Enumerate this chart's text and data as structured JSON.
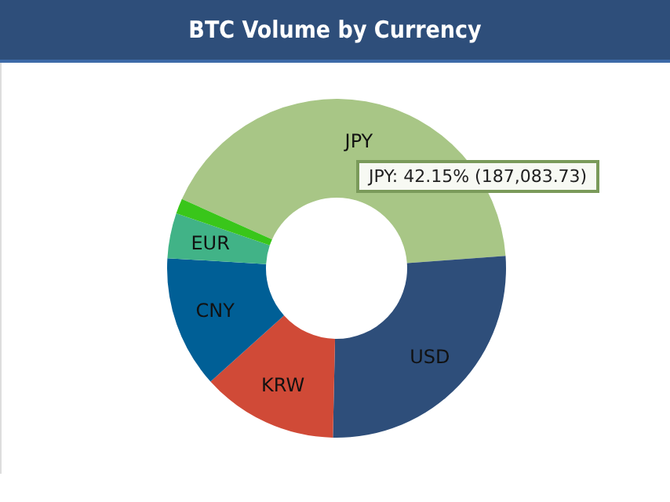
{
  "chart_data": {
    "type": "donut",
    "title": "BTC Volume by Currency",
    "categories": [
      "JPY",
      "USD",
      "KRW",
      "CNY",
      "EUR",
      null
    ],
    "values": [
      42.15,
      26.5,
      13,
      12.6,
      4.3,
      1.45
    ],
    "colors": [
      "#a8c686",
      "#2e4e7a",
      "#d04a37",
      "#005f96",
      "#41b387",
      "#39c61a"
    ],
    "annotations": [
      "JPY: 42.15% (187,083.73)"
    ]
  }
}
